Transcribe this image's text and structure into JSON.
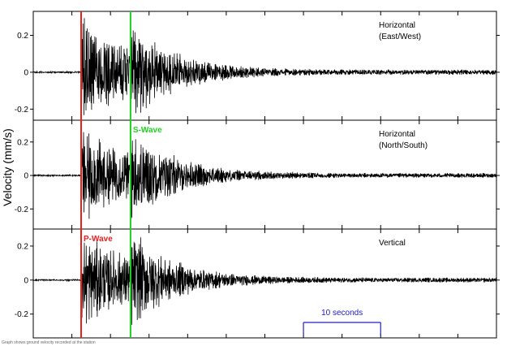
{
  "chart_data": {
    "type": "line",
    "ylabel": "Velocity (mm/s)",
    "yticks": [
      -0.2,
      0,
      0.2
    ],
    "ytick_labels": [
      "-0.2",
      "0",
      "0.2"
    ],
    "x_range_seconds": [
      0,
      60
    ],
    "panels": [
      {
        "label_lines": [
          "Horizontal",
          "(East/West)"
        ],
        "ylim": [
          -0.26,
          0.33
        ],
        "peak_amplitude": 0.29
      },
      {
        "label_lines": [
          "Horizontal",
          "(North/South)"
        ],
        "ylim": [
          -0.32,
          0.33
        ],
        "peak_amplitude": 0.3
      },
      {
        "label_lines": [
          "Vertical"
        ],
        "ylim": [
          -0.34,
          0.3
        ],
        "peak_amplitude": 0.29
      }
    ],
    "markers": [
      {
        "name": "P-Wave",
        "time_seconds": 6.2,
        "color": "#e82020"
      },
      {
        "name": "S-Wave",
        "time_seconds": 12.6,
        "color": "#20d020"
      }
    ],
    "scale_bar": {
      "label": "10 seconds",
      "start_seconds": 35,
      "length_seconds": 10,
      "color": "#2020c0"
    },
    "grid": false
  },
  "caption": "Graph shows ground velocity recorded at the station"
}
